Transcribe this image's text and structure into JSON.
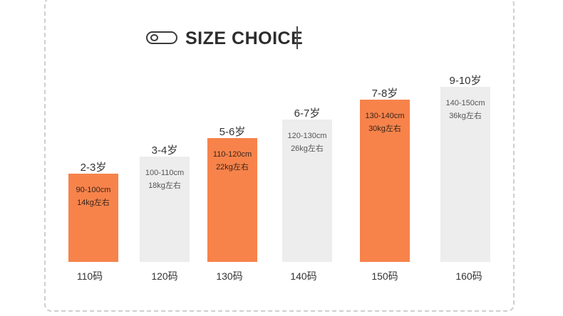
{
  "title": "SIZE CHOICE",
  "colors": {
    "highlight": "#F7834B",
    "normal": "#EDEDED"
  },
  "sizes": [
    {
      "age": "2-3岁",
      "height": "90-100cm",
      "weight": "14kg左右",
      "size": "110码",
      "highlight": true
    },
    {
      "age": "3-4岁",
      "height": "100-110cm",
      "weight": "18kg左右",
      "size": "120码",
      "highlight": false
    },
    {
      "age": "5-6岁",
      "height": "110-120cm",
      "weight": "22kg左右",
      "size": "130码",
      "highlight": true
    },
    {
      "age": "6-7岁",
      "height": "120-130cm",
      "weight": "26kg左右",
      "size": "140码",
      "highlight": false
    },
    {
      "age": "7-8岁",
      "height": "130-140cm",
      "weight": "30kg左右",
      "size": "150码",
      "highlight": true
    },
    {
      "age": "9-10岁",
      "height": "140-150cm",
      "weight": "36kg左右",
      "size": "160码",
      "highlight": false
    }
  ]
}
